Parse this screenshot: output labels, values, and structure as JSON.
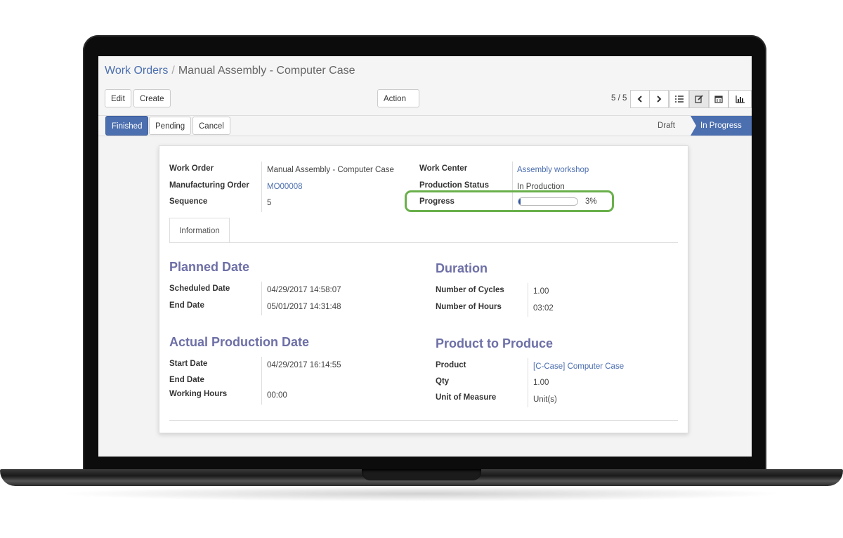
{
  "breadcrumb": {
    "parent": "Work Orders",
    "separator": "/",
    "current": "Manual Assembly - Computer Case"
  },
  "toolbar": {
    "edit": "Edit",
    "create": "Create",
    "action": "Action",
    "pager": "5 / 5"
  },
  "status_buttons": {
    "finished": "Finished",
    "pending": "Pending",
    "cancel": "Cancel"
  },
  "stages": {
    "draft": "Draft",
    "in_progress": "In Progress"
  },
  "header_fields": {
    "work_order_label": "Work Order",
    "work_order_value": "Manual Assembly - Computer Case",
    "mo_label": "Manufacturing Order",
    "mo_value": "MO00008",
    "sequence_label": "Sequence",
    "sequence_value": "5",
    "work_center_label": "Work Center",
    "work_center_value": "Assembly workshop",
    "production_status_label": "Production Status",
    "production_status_value": "In Production",
    "progress_label": "Progress",
    "progress_value": "3%",
    "progress_fraction": 0.03
  },
  "tabs": {
    "information": "Information"
  },
  "planned": {
    "title": "Planned Date",
    "scheduled_label": "Scheduled Date",
    "scheduled_value": "04/29/2017 14:58:07",
    "end_label": "End Date",
    "end_value": "05/01/2017 14:31:48"
  },
  "duration": {
    "title": "Duration",
    "cycles_label": "Number of Cycles",
    "cycles_value": "1.00",
    "hours_label": "Number of Hours",
    "hours_value": "03:02"
  },
  "actual": {
    "title": "Actual Production Date",
    "start_label": "Start Date",
    "start_value": "04/29/2017 16:14:55",
    "end_label": "End Date",
    "end_value": "",
    "working_label": "Working Hours",
    "working_value": "00:00"
  },
  "product": {
    "title": "Product to Produce",
    "product_label": "Product",
    "product_value": "[C-Case] Computer Case",
    "qty_label": "Qty",
    "qty_value": "1.00",
    "uom_label": "Unit of Measure",
    "uom_value": "Unit(s)"
  },
  "colors": {
    "accent": "#4c6fb0",
    "section_title": "#6d6fa6",
    "highlight_border": "#6ab04c",
    "progress_fill": "#2e55a5"
  }
}
